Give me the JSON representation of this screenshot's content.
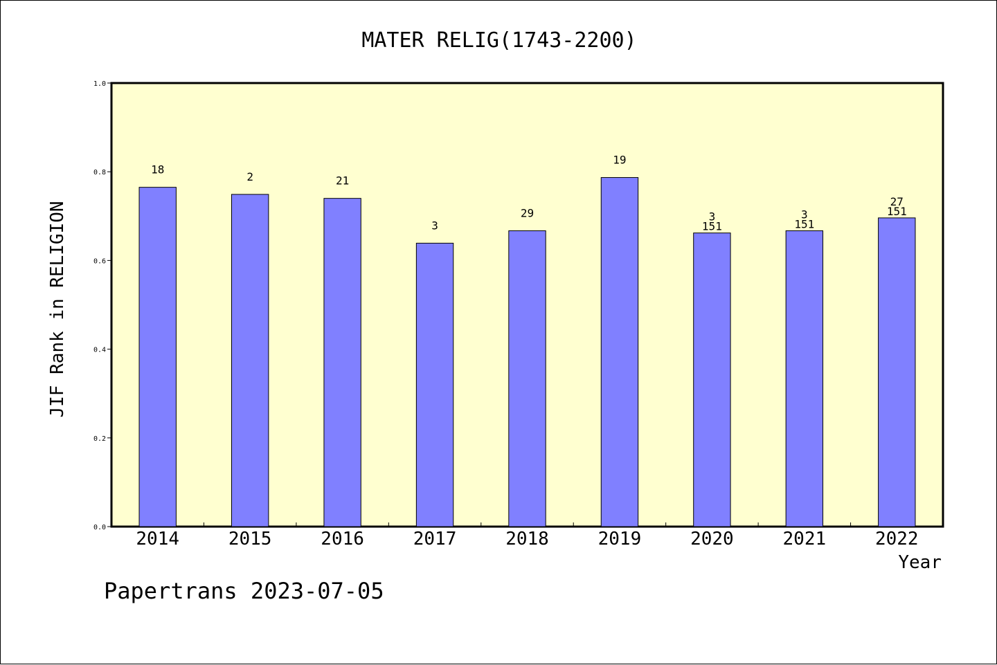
{
  "footer": {
    "text": "Papertrans 2023-07-05"
  },
  "chart_data": {
    "type": "bar",
    "title": "MATER RELIG(1743-2200)",
    "xlabel": "Year",
    "ylabel": "JIF Rank in RELIGION",
    "categories": [
      "2014",
      "2015",
      "2016",
      "2017",
      "2018",
      "2019",
      "2020",
      "2021",
      "2022"
    ],
    "values": [
      0.765,
      0.749,
      0.74,
      0.639,
      0.667,
      0.787,
      0.662,
      0.667,
      0.696
    ],
    "rank_labels": [
      "18",
      "2",
      "21",
      "3",
      "29",
      "19",
      "3",
      "3",
      "27"
    ],
    "total_labels": [
      "",
      "",
      "",
      "",
      "",
      "",
      "151",
      "151",
      "151"
    ],
    "ylim": [
      0,
      1.0
    ],
    "yticks": [
      "0.0",
      "0.2",
      "0.4",
      "0.6",
      "0.8",
      "1.0"
    ],
    "ytick_values": [
      0,
      0.2,
      0.4,
      0.6,
      0.8,
      1.0
    ],
    "grid": false,
    "colors": {
      "bar": "#8080ff",
      "plot_background": "#ffffd0",
      "axis": "#000000"
    }
  }
}
